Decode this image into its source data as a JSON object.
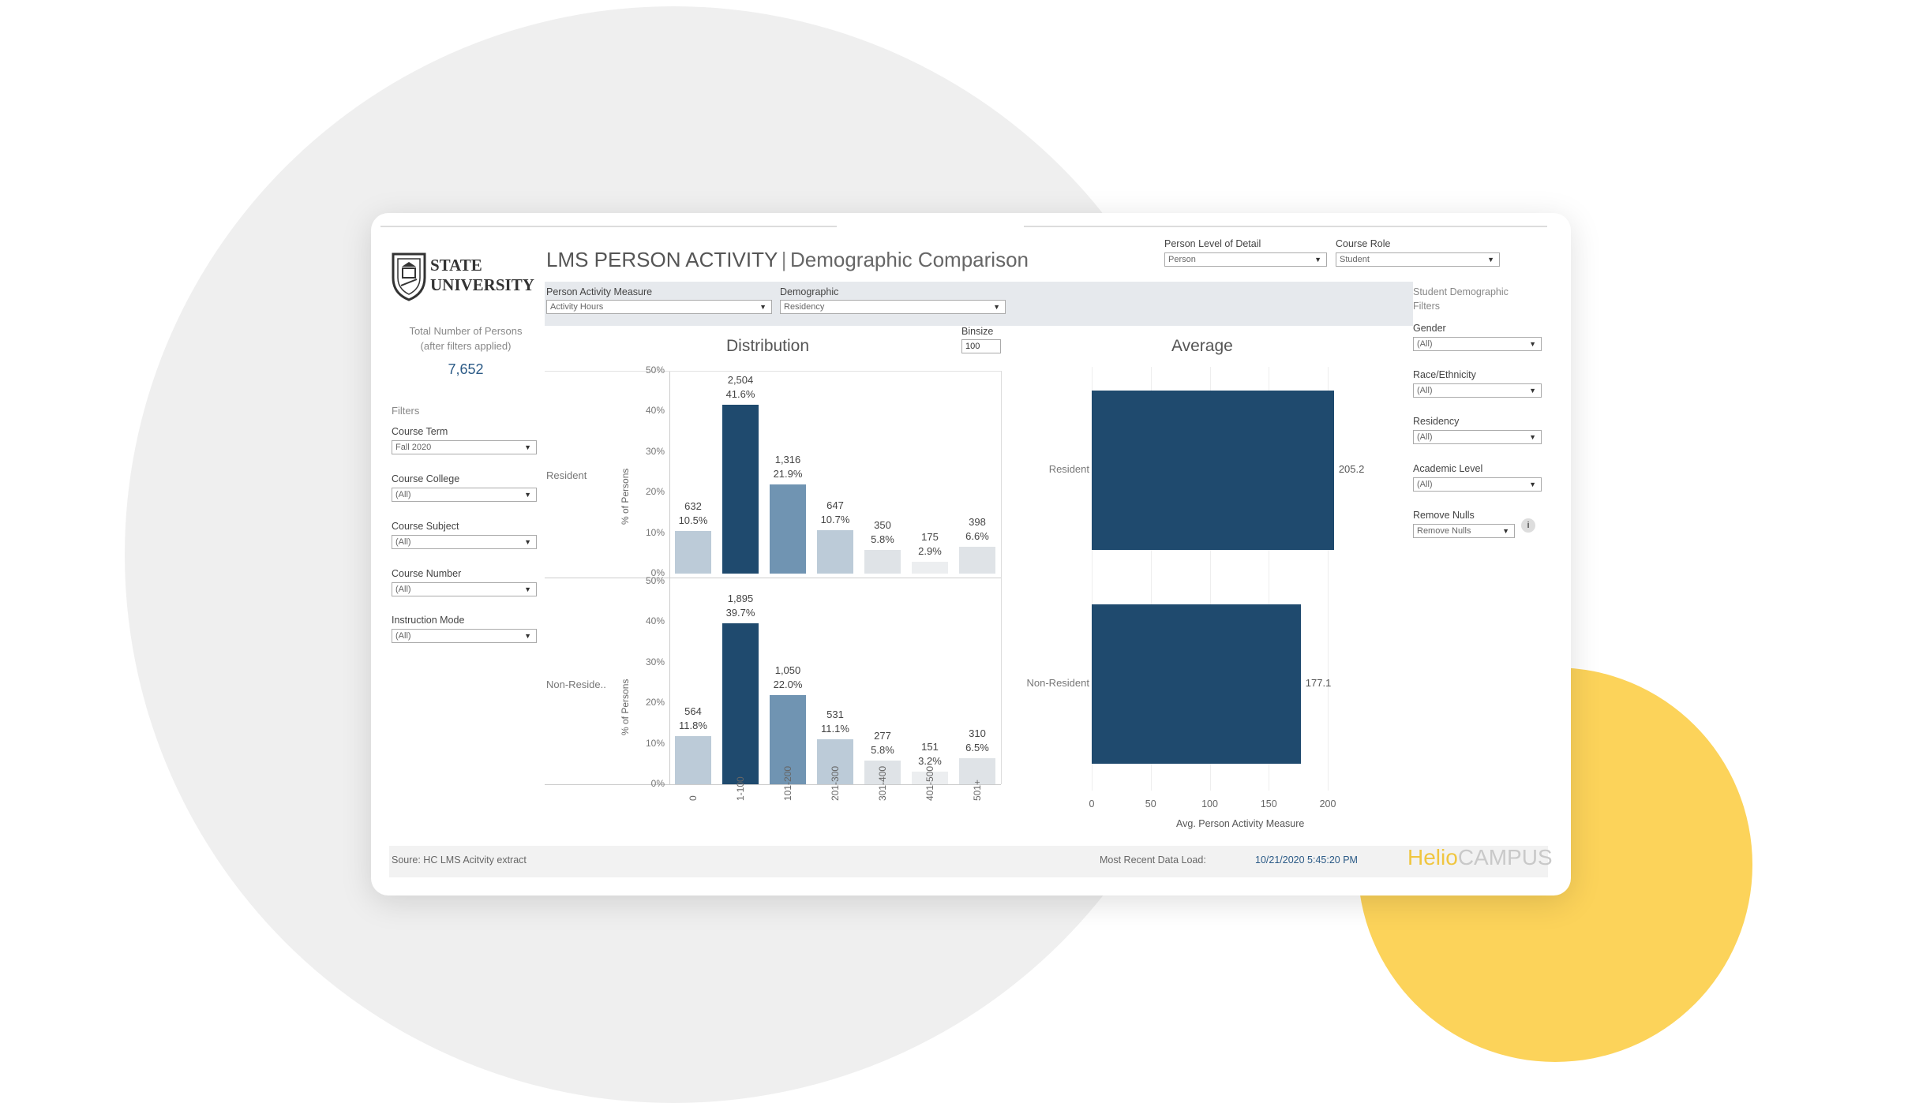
{
  "logo": {
    "line1": "STATE",
    "line2": "UNIVERSITY"
  },
  "total_persons": {
    "label_line1": "Total Number of Persons",
    "label_line2": "(after filters applied)",
    "value": "7,652"
  },
  "filters": {
    "heading": "Filters",
    "items": [
      {
        "label": "Course Term",
        "value": "Fall 2020"
      },
      {
        "label": "Course College",
        "value": "(All)"
      },
      {
        "label": "Course Subject",
        "value": "(All)"
      },
      {
        "label": "Course Number",
        "value": "(All)"
      },
      {
        "label": "Instruction Mode",
        "value": "(All)"
      }
    ]
  },
  "title": {
    "main": "LMS PERSON ACTIVITY",
    "sep": "|",
    "sub": "Demographic Comparison"
  },
  "top_controls": {
    "level": {
      "label": "Person Level of Detail",
      "value": "Person"
    },
    "role": {
      "label": "Course Role",
      "value": "Student"
    }
  },
  "measure_controls": {
    "measure": {
      "label": "Person Activity Measure",
      "value": "Activity Hours"
    },
    "demographic": {
      "label": "Demographic",
      "value": "Residency"
    }
  },
  "right_filters": {
    "heading_line1": "Student Demographic",
    "heading_line2": "Filters",
    "items": [
      {
        "label": "Gender",
        "value": "(All)"
      },
      {
        "label": "Race/Ethnicity",
        "value": "(All)"
      },
      {
        "label": "Residency",
        "value": "(All)"
      },
      {
        "label": "Academic Level",
        "value": "(All)"
      }
    ],
    "remove_nulls": {
      "label": "Remove Nulls",
      "value": "Remove Nulls"
    },
    "info_icon": "i"
  },
  "binsize": {
    "label": "Binsize",
    "value": "100"
  },
  "chart_data": [
    {
      "type": "bar",
      "title": "Distribution",
      "ylabel": "% of Persons",
      "ylim": [
        0,
        50
      ],
      "yticks": [
        "50%",
        "40%",
        "30%",
        "20%",
        "10%",
        "0%"
      ],
      "categories": [
        "0",
        "1-100",
        "101-200",
        "201-300",
        "301-400",
        "401-500",
        "501+"
      ],
      "bar_colors": [
        "#bccbd8",
        "#1f4a6e",
        "#7094b2",
        "#bccbd8",
        "#dfe3e7",
        "#eceef0",
        "#dfe3e7"
      ],
      "series": [
        {
          "name": "Resident",
          "values": [
            10.5,
            41.6,
            21.9,
            10.7,
            5.8,
            2.9,
            6.6
          ],
          "counts": [
            "632",
            "2,504",
            "1,316",
            "647",
            "350",
            "175",
            "398"
          ],
          "pcts": [
            "10.5%",
            "41.6%",
            "21.9%",
            "10.7%",
            "5.8%",
            "2.9%",
            "6.6%"
          ]
        },
        {
          "name": "Non-Reside..",
          "values": [
            11.8,
            39.7,
            22.0,
            11.1,
            5.8,
            3.2,
            6.5
          ],
          "counts": [
            "564",
            "1,895",
            "1,050",
            "531",
            "277",
            "151",
            "310"
          ],
          "pcts": [
            "11.8%",
            "39.7%",
            "22.0%",
            "11.1%",
            "5.8%",
            "3.2%",
            "6.5%"
          ]
        }
      ]
    },
    {
      "type": "bar",
      "orientation": "horizontal",
      "title": "Average",
      "xlabel": "Avg. Person Activity Measure",
      "xlim": [
        0,
        210
      ],
      "xticks": [
        "0",
        "50",
        "100",
        "150",
        "200"
      ],
      "categories": [
        "Resident",
        "Non-Resident"
      ],
      "values": [
        205.2,
        177.1
      ],
      "value_labels": [
        "205.2",
        "177.1"
      ],
      "color": "#1f4a6e"
    }
  ],
  "footer": {
    "source": "Soure: HC LMS Acitvity extract",
    "recent_label": "Most Recent Data Load:",
    "recent_value": "10/21/2020 5:45:20 PM",
    "brand_a": "Helio",
    "brand_b": "CAMPUS"
  }
}
